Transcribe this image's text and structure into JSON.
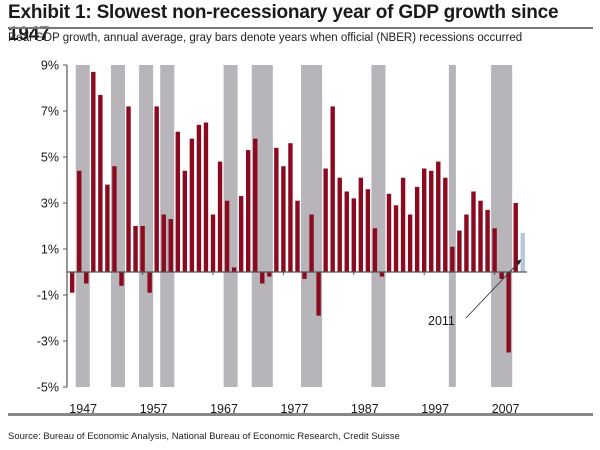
{
  "header": {
    "title": "Exhibit 1: Slowest non-recessionary year of GDP growth since 1947",
    "subtitle": "Real GDP growth, annual average, gray bars denote years when official (NBER) recessions occurred"
  },
  "footer": {
    "source": "Source: Bureau of Economic Analysis, National Bureau of Economic Research, Credit Suisse"
  },
  "chart_data": {
    "type": "bar",
    "title": "Exhibit 1: Slowest non-recessionary year of GDP growth since 1947",
    "subtitle": "Real GDP growth, annual average, gray bars denote years when official (NBER) recessions occurred",
    "xlabel": "",
    "ylabel": "",
    "ylim": [
      -5,
      9
    ],
    "y_ticks": [
      "9%",
      "7%",
      "5%",
      "3%",
      "1%",
      "-1%",
      "-3%",
      "-5%"
    ],
    "y_tick_values": [
      9,
      7,
      5,
      3,
      1,
      -1,
      -3,
      -5
    ],
    "x_tick_labels": [
      "1947",
      "1957",
      "1967",
      "1977",
      "1987",
      "1997",
      "2007"
    ],
    "grid": false,
    "colors": {
      "bar": "#8b0a1f",
      "recession": "#b8b5ba",
      "highlight": "#b8c8dc",
      "axis": "#555555"
    },
    "years": [
      1947,
      1948,
      1949,
      1950,
      1951,
      1952,
      1953,
      1954,
      1955,
      1956,
      1957,
      1958,
      1959,
      1960,
      1961,
      1962,
      1963,
      1964,
      1965,
      1966,
      1967,
      1968,
      1969,
      1970,
      1971,
      1972,
      1973,
      1974,
      1975,
      1976,
      1977,
      1978,
      1979,
      1980,
      1981,
      1982,
      1983,
      1984,
      1985,
      1986,
      1987,
      1988,
      1989,
      1990,
      1991,
      1992,
      1993,
      1994,
      1995,
      1996,
      1997,
      1998,
      1999,
      2000,
      2001,
      2002,
      2003,
      2004,
      2005,
      2006,
      2007,
      2008,
      2009,
      2010,
      2011
    ],
    "series": [
      {
        "name": "Real GDP growth",
        "values": [
          -0.9,
          4.4,
          -0.5,
          8.7,
          7.7,
          3.8,
          4.6,
          -0.6,
          7.2,
          2.0,
          2.0,
          -0.9,
          7.2,
          2.5,
          2.3,
          6.1,
          4.4,
          5.8,
          6.4,
          6.5,
          2.5,
          4.8,
          3.1,
          0.2,
          3.3,
          5.3,
          5.8,
          -0.5,
          -0.2,
          5.4,
          4.6,
          5.6,
          3.1,
          -0.3,
          2.5,
          -1.9,
          4.5,
          7.2,
          4.1,
          3.5,
          3.2,
          4.1,
          3.6,
          1.9,
          -0.2,
          3.4,
          2.9,
          4.1,
          2.5,
          3.7,
          4.5,
          4.4,
          4.8,
          4.1,
          1.1,
          1.8,
          2.5,
          3.5,
          3.1,
          2.7,
          1.9,
          -0.3,
          -3.5,
          3.0,
          1.7
        ]
      }
    ],
    "recession_years": [
      1948,
      1949,
      1953,
      1954,
      1957,
      1958,
      1960,
      1961,
      1969,
      1970,
      1973,
      1974,
      1975,
      1980,
      1981,
      1982,
      1990,
      1991,
      2001,
      2007,
      2008,
      2009
    ],
    "highlight_year": 2011,
    "annotations": [
      {
        "text": "2011",
        "points_to": 2011
      }
    ]
  }
}
